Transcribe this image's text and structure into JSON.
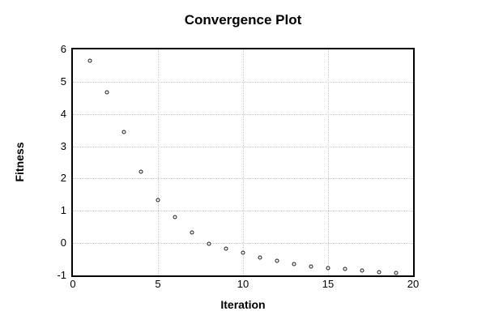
{
  "chart_data": {
    "type": "scatter",
    "title": "Convergence Plot",
    "xlabel": "Iteration",
    "ylabel": "Fitness",
    "xlim": [
      0,
      20
    ],
    "ylim": [
      -1,
      6
    ],
    "x_ticks": [
      0,
      5,
      10,
      15,
      20
    ],
    "y_ticks": [
      -1,
      0,
      1,
      2,
      3,
      4,
      5,
      6
    ],
    "grid": "dotted",
    "legend": "none",
    "marker": "open-circle",
    "series": [
      {
        "name": "fitness",
        "x": [
          1,
          2,
          3,
          4,
          5,
          6,
          7,
          8,
          9,
          10,
          11,
          12,
          13,
          14,
          15,
          16,
          17,
          18,
          19
        ],
        "y": [
          5.66,
          4.66,
          3.43,
          2.2,
          1.33,
          0.8,
          0.32,
          -0.02,
          -0.16,
          -0.31,
          -0.44,
          -0.56,
          -0.65,
          -0.72,
          -0.77,
          -0.81,
          -0.84,
          -0.9,
          -0.93
        ]
      }
    ]
  },
  "colors": {
    "background": "#ffffff",
    "text": "#000000",
    "axis": "#000000",
    "grid": "#c8c8c8",
    "marker": "#1a1a1a"
  }
}
